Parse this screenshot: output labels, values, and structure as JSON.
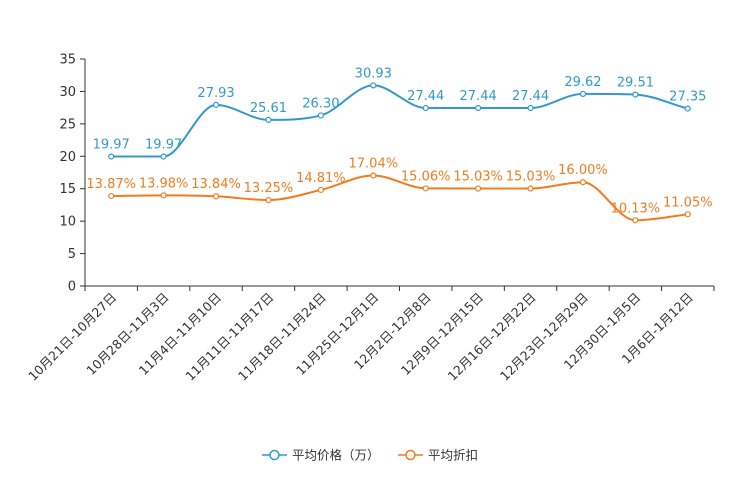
{
  "chart_data": {
    "type": "line",
    "title": "",
    "xlabel": "",
    "ylabel": "",
    "ylim": [
      0,
      35
    ],
    "yticks": [
      0,
      5,
      10,
      15,
      20,
      25,
      30,
      35
    ],
    "grid": false,
    "smooth": true,
    "legend_position": "bottom-center",
    "categories": [
      "10月21日-10月27日",
      "10月28日-11月3日",
      "11月4日-11月10日",
      "11月11日-11月17日",
      "11月18日-11月24日",
      "11月25日-12月1日",
      "12月2日-12月8日",
      "12月9日-12月15日",
      "12月16日-12月22日",
      "12月23日-12月29日",
      "12月30日-1月5日",
      "1月6日-1月12日"
    ],
    "series": [
      {
        "name": "平均价格（万）",
        "color": "#3399cc",
        "values": [
          19.97,
          19.97,
          27.93,
          25.61,
          26.3,
          30.93,
          27.44,
          27.44,
          27.44,
          29.62,
          29.51,
          27.35
        ],
        "labels": [
          "19.97",
          "19.97",
          "27.93",
          "25.61",
          "26.30",
          "30.93",
          "27.44",
          "27.44",
          "27.44",
          "29.62",
          "29.51",
          "27.35"
        ]
      },
      {
        "name": "平均折扣",
        "color": "#f07c1f",
        "values": [
          13.87,
          13.98,
          13.84,
          13.25,
          14.81,
          17.04,
          15.06,
          15.03,
          15.03,
          16.0,
          10.13,
          11.05
        ],
        "labels": [
          "13.87%",
          "13.98%",
          "13.84%",
          "13.25%",
          "14.81%",
          "17.04%",
          "15.06%",
          "15.03%",
          "15.03%",
          "16.00%",
          "10.13%",
          "11.05%"
        ]
      }
    ]
  }
}
